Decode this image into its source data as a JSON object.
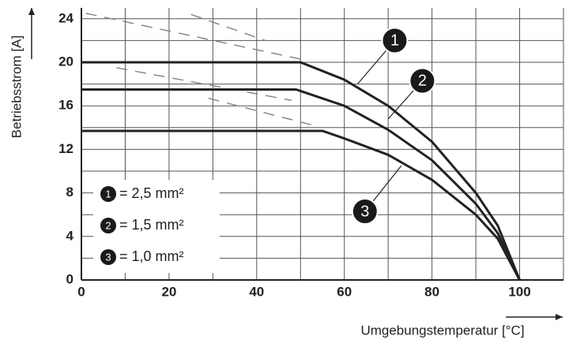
{
  "chart_data": {
    "type": "line",
    "xlabel": "Umgebungstemperatur [°C]",
    "ylabel": "Betriebsstrom [A]",
    "xlim": [
      0,
      110
    ],
    "ylim": [
      0,
      25
    ],
    "xticks": [
      0,
      20,
      40,
      60,
      80,
      100
    ],
    "yticks": [
      0,
      4,
      8,
      12,
      16,
      20,
      24
    ],
    "xminorticks": [
      10,
      30,
      50,
      70,
      90,
      110
    ],
    "yminorticks": [
      2,
      6,
      10,
      14,
      18,
      22
    ],
    "grid": true,
    "legend": "lower left",
    "series": [
      {
        "name": "1",
        "legend_label": "= 2,5 mm²",
        "color": "#222222",
        "x": [
          0,
          50,
          60,
          70,
          80,
          90,
          95,
          100
        ],
        "values": [
          20,
          20,
          18.4,
          16,
          12.7,
          8,
          5,
          0
        ]
      },
      {
        "name": "2",
        "legend_label": "= 1,5 mm²",
        "color": "#222222",
        "x": [
          0,
          49,
          60,
          70,
          80,
          90,
          95,
          100
        ],
        "values": [
          17.5,
          17.5,
          16,
          13.8,
          11,
          7,
          4.3,
          0
        ]
      },
      {
        "name": "3",
        "legend_label": "= 1,0 mm²",
        "color": "#222222",
        "x": [
          0,
          55,
          60,
          70,
          80,
          90,
          95,
          100
        ],
        "values": [
          13.7,
          13.7,
          13,
          11.5,
          9.2,
          6,
          3.8,
          0
        ]
      }
    ],
    "dashed_lines": [
      {
        "x": [
          1,
          50
        ],
        "values": [
          24.5,
          20.3
        ]
      },
      {
        "x": [
          25,
          42
        ],
        "values": [
          24.4,
          22
        ]
      },
      {
        "x": [
          8,
          48
        ],
        "values": [
          19.5,
          16.5
        ]
      },
      {
        "x": [
          29,
          54
        ],
        "values": [
          16.7,
          14.1
        ]
      }
    ]
  }
}
